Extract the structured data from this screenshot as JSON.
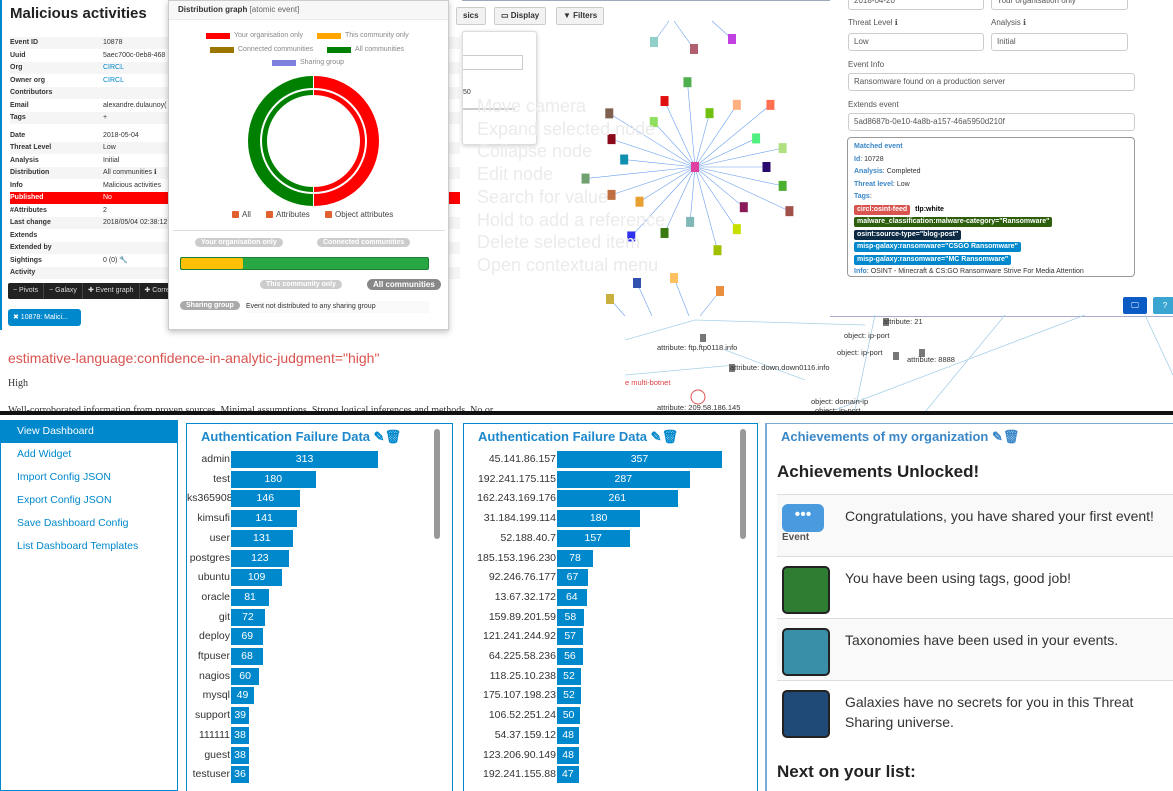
{
  "event": {
    "title": "Malicious activities",
    "rows": [
      {
        "k": "Event ID",
        "v": "10878"
      },
      {
        "k": "Uuid",
        "v": "5aec700c-0eb8-468"
      },
      {
        "k": "Org",
        "v": "CIRCL",
        "link": true
      },
      {
        "k": "Owner org",
        "v": "CIRCL",
        "link": true
      },
      {
        "k": "Contributors",
        "v": ""
      },
      {
        "k": "Email",
        "v": "alexandre.dulaunoy("
      },
      {
        "k": "Tags",
        "v": "+",
        "tag": true
      },
      {
        "k": "Date",
        "v": "2018-05-04"
      },
      {
        "k": "Threat Level",
        "v": "Low"
      },
      {
        "k": "Analysis",
        "v": "Initial"
      },
      {
        "k": "Distribution",
        "v": "All communities ℹ"
      },
      {
        "k": "Info",
        "v": "Malicious activities"
      },
      {
        "k": "Published",
        "v": "No",
        "pub": true
      },
      {
        "k": "#Attributes",
        "v": "2"
      },
      {
        "k": "Last change",
        "v": "2018/05/04 02:38:12"
      },
      {
        "k": "Extends",
        "v": ""
      },
      {
        "k": "Extended by",
        "v": ""
      },
      {
        "k": "Sightings",
        "v": "0 (0) 🔧"
      },
      {
        "k": "Activity",
        "v": ""
      }
    ],
    "toolbar": [
      "− Pivots",
      "− Galaxy",
      "✚ Event graph",
      "✚ Corre"
    ],
    "tab": "✖ 10878: Malici..."
  },
  "distribution": {
    "title": "Distribution graph",
    "subtitle": "[atomic event]",
    "legend": [
      {
        "label": "Your organisation only",
        "color": "#ff0000"
      },
      {
        "label": "This community only",
        "color": "#ffa500"
      },
      {
        "label": "Connected communities",
        "color": "#9a7500"
      },
      {
        "label": "All communities",
        "color": "#008000"
      },
      {
        "label": "Sharing group",
        "color": "#7f7fe0"
      }
    ],
    "checks": [
      "All",
      "Attributes",
      "Object attributes"
    ],
    "scale_labels": {
      "org": "Your organisation only",
      "connected": "Connected communities",
      "community": "This community only",
      "all": "All communities"
    },
    "progress_fraction": 0.25,
    "sharing_label": "Sharing group",
    "sharing_text": "Event not distributed to any sharing group"
  },
  "graph": {
    "buttons": [
      "sics",
      "Display",
      "Filters"
    ],
    "slider_value": "50",
    "help": [
      "Move camera",
      "Expand selected node",
      "Collapse node",
      "Edit node",
      "Search for value",
      "Hold to add a reference",
      "Delete selected item",
      "Open contextual menu"
    ],
    "lower_labels": [
      "attribute: ftp.ftp0118.info",
      "object: ip-port",
      "object: ip-port",
      "attribute: 8888",
      "attribute: down.down0116.info",
      "e multi-botnet",
      "attribute: 209.58.186.145",
      "object: domain-ip",
      "object: ip-port",
      "attribute: 21"
    ]
  },
  "form": {
    "date": "2018-04-20",
    "distribution": "Your organisation only",
    "threat_label": "Threat Level",
    "threat": "Low",
    "analysis_label": "Analysis",
    "analysis": "Initial",
    "info_label": "Event Info",
    "info": "Ransomware found on a production server",
    "extends_label": "Extends event",
    "extends": "5ad8687b-0e10-4a8b-a157-46a5950d210f",
    "matched": {
      "title": "Matched event",
      "id_k": "Id",
      "id": "10728",
      "analysis_k": "Analysis",
      "analysis": "Completed",
      "threat_k": "Threat level",
      "threat": "Low",
      "tags_k": "Tags",
      "tags": [
        {
          "t": "circl:osint-feed",
          "c": "#d9534f"
        },
        {
          "t": "tlp:white",
          "c": "#ffffff"
        },
        {
          "t": "malware_classification:malware-category=\"Ransomware\"",
          "c": "#2c5e0b"
        },
        {
          "t": "osint:source-type=\"blog-post\"",
          "c": "#0c2a44"
        },
        {
          "t": "misp-galaxy:ransomware=\"CSGO Ransomware\"",
          "c": "#0088cc"
        },
        {
          "t": "misp-galaxy:ransomware=\"MC Ransomware\"",
          "c": "#0088cc"
        }
      ],
      "info_k": "Info",
      "info": "OSINT - Minecraft & CS:GO Ransomware Strive For Media Attention"
    },
    "help_btn": "?"
  },
  "tag_text": "estimative-language:confidence-in-analytic-judgment=\"high\"",
  "tag_value": "High",
  "tag_desc": "Well-corroborated information from proven sources. Minimal assumptions. Strong logical inferences and methods. No or",
  "sidebar": [
    "View Dashboard",
    "Add Widget",
    "Import Config JSON",
    "Export Config JSON",
    "Save Dashboard Config",
    "List Dashboard Templates"
  ],
  "chart_data": [
    {
      "type": "bar",
      "title": "Authentication Failure Data",
      "orientation": "horizontal",
      "categories": [
        "admin",
        "test",
        "ks365908",
        "kimsufi",
        "user",
        "postgres",
        "ubuntu",
        "oracle",
        "git",
        "deploy",
        "ftpuser",
        "nagios",
        "mysql",
        "support",
        "111111",
        "guest",
        "testuser"
      ],
      "values": [
        313,
        180,
        146,
        141,
        131,
        123,
        109,
        81,
        72,
        69,
        68,
        60,
        49,
        39,
        38,
        38,
        36
      ],
      "color": "#0088cc"
    },
    {
      "type": "bar",
      "title": "Authentication Failure Data",
      "orientation": "horizontal",
      "categories": [
        "45.141.86.157",
        "192.241.175.115",
        "162.243.169.176",
        "31.184.199.114",
        "52.188.40.7",
        "185.153.196.230",
        "92.246.76.177",
        "13.67.32.172",
        "159.89.201.59",
        "121.241.244.92",
        "64.225.58.236",
        "118.25.10.238",
        "175.107.198.23",
        "106.52.251.24",
        "54.37.159.12",
        "123.206.90.149",
        "192.241.155.88"
      ],
      "values": [
        357,
        287,
        261,
        180,
        157,
        78,
        67,
        64,
        58,
        57,
        56,
        52,
        52,
        50,
        48,
        48,
        47
      ],
      "color": "#0088cc"
    }
  ],
  "achievements": {
    "title": "Achievements of my organization",
    "unlocked": "Achievements Unlocked!",
    "items": [
      {
        "text": "Congratulations, you have shared your first event!",
        "icon": "event-chat-icon",
        "icon_label": "Event"
      },
      {
        "text": "You have been using tags, good job!",
        "icon": "marking-definition-icon"
      },
      {
        "text": "Taxonomies have been used in your events.",
        "icon": "taxonomy-icon"
      },
      {
        "text": "Galaxies have no secrets for you in this Threat Sharing universe.",
        "icon": "galaxy-icon"
      }
    ],
    "next": "Next on your list:"
  }
}
